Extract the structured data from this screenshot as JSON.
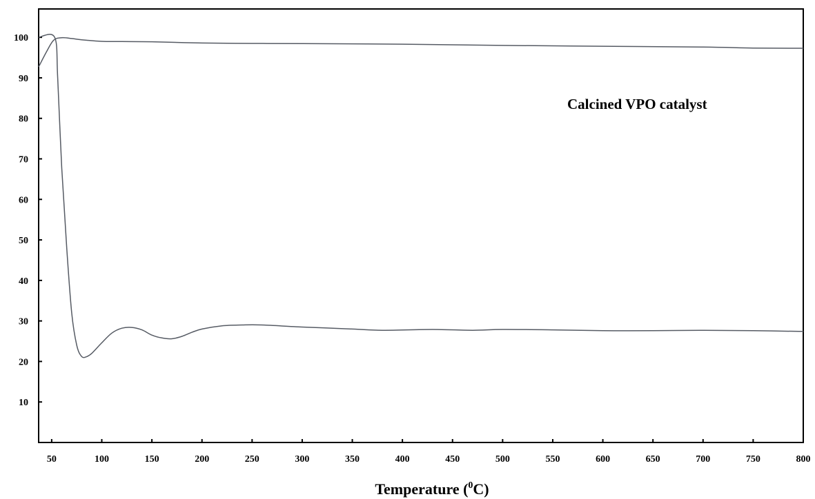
{
  "chart_data": {
    "type": "line",
    "title": "",
    "xlabel": "Temperature (",
    "xlabel_sup": "0",
    "xlabel_suffix": "C)",
    "ylabel": "",
    "annotation": "Calcined VPO catalyst",
    "xlim": [
      37,
      800
    ],
    "ylim": [
      0,
      107
    ],
    "xticks": [
      50,
      100,
      150,
      200,
      250,
      300,
      350,
      400,
      450,
      500,
      550,
      600,
      650,
      700,
      750,
      800
    ],
    "yticks": [
      10,
      20,
      30,
      40,
      50,
      60,
      70,
      80,
      90,
      100
    ],
    "grid": false,
    "line_color": "#555a63",
    "series": [
      {
        "x": [
          37,
          45,
          52,
          60,
          70,
          80,
          100,
          120,
          150,
          200,
          250,
          300,
          400,
          500,
          600,
          700,
          750,
          800
        ],
        "y": [
          92.7,
          96.5,
          99.3,
          99.9,
          99.7,
          99.4,
          99.0,
          98.95,
          98.9,
          98.6,
          98.5,
          98.45,
          98.3,
          98.0,
          97.8,
          97.6,
          97.35,
          97.3
        ]
      },
      {
        "x": [
          37,
          53,
          56,
          60,
          65,
          70,
          75,
          80,
          85,
          90,
          100,
          110,
          120,
          130,
          140,
          150,
          160,
          170,
          180,
          190,
          200,
          220,
          240,
          260,
          300,
          350,
          380,
          430,
          470,
          500,
          550,
          600,
          650,
          700,
          750,
          800
        ],
        "y": [
          100,
          100,
          90,
          68,
          48,
          32,
          24,
          21.2,
          21.2,
          22,
          24.6,
          27,
          28.2,
          28.4,
          27.8,
          26.5,
          25.8,
          25.6,
          26.2,
          27.2,
          28.0,
          28.8,
          29.0,
          29.0,
          28.5,
          28.0,
          27.7,
          27.9,
          27.7,
          27.9,
          27.8,
          27.6,
          27.6,
          27.7,
          27.6,
          27.4
        ]
      }
    ]
  }
}
